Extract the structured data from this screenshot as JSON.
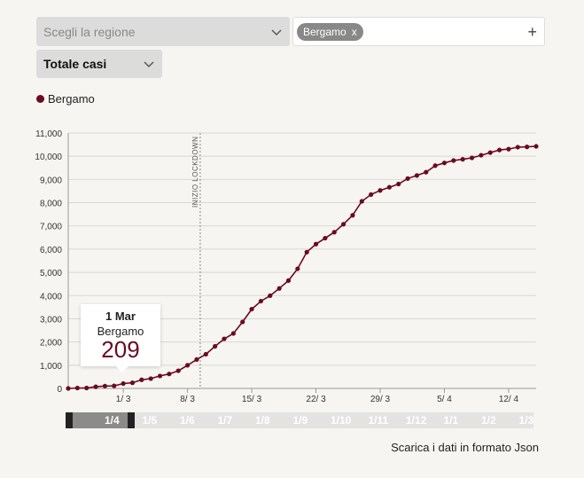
{
  "controls": {
    "region_placeholder": "Scegli la regione",
    "chips": [
      {
        "label": "Bergamo",
        "remove": "x"
      }
    ],
    "add_symbol": "+",
    "metric_label": "Totale casi"
  },
  "legend": [
    {
      "label": "Bergamo",
      "color": "#6b0a22"
    }
  ],
  "tooltip": {
    "date": "1 Mar",
    "name": "Bergamo",
    "value": "209"
  },
  "timeline": {
    "labels": [
      "1/4",
      "1/5",
      "1/6",
      "1/7",
      "1/8",
      "1/9",
      "1/10",
      "1/11",
      "1/12",
      "1/1",
      "1/2",
      "1/3"
    ]
  },
  "download_label": "Scarica i dati in formato Json",
  "chart_data": {
    "type": "line",
    "title": "",
    "xlabel": "",
    "ylabel": "",
    "ylim": [
      0,
      11000
    ],
    "yticks": [
      0,
      1000,
      2000,
      3000,
      4000,
      5000,
      6000,
      7000,
      8000,
      9000,
      10000,
      11000
    ],
    "ytick_labels": [
      "0",
      "1,000",
      "2,000",
      "3,000",
      "4,000",
      "5,000",
      "6,000",
      "7,000",
      "8,000",
      "9,000",
      "10,000",
      "11,000"
    ],
    "x_start": "2020-02-24",
    "x_end": "2020-04-15",
    "xticks": [
      "2020-03-01",
      "2020-03-08",
      "2020-03-15",
      "2020-03-22",
      "2020-03-29",
      "2020-04-05",
      "2020-04-12"
    ],
    "xtick_labels": [
      "1/ 3",
      "8/ 3",
      "15/ 3",
      "22/ 3",
      "29/ 3",
      "5/ 4",
      "12/ 4"
    ],
    "annotation": {
      "date": "2020-03-09",
      "label": "INIZIO LOCKDOWN"
    },
    "grid": true,
    "color": "#6b0a22",
    "series": [
      {
        "name": "Bergamo",
        "x": [
          "2020-02-24",
          "2020-02-25",
          "2020-02-26",
          "2020-02-27",
          "2020-02-28",
          "2020-02-29",
          "2020-03-01",
          "2020-03-02",
          "2020-03-03",
          "2020-03-04",
          "2020-03-05",
          "2020-03-06",
          "2020-03-07",
          "2020-03-08",
          "2020-03-09",
          "2020-03-10",
          "2020-03-11",
          "2020-03-12",
          "2020-03-13",
          "2020-03-14",
          "2020-03-15",
          "2020-03-16",
          "2020-03-17",
          "2020-03-18",
          "2020-03-19",
          "2020-03-20",
          "2020-03-21",
          "2020-03-22",
          "2020-03-23",
          "2020-03-24",
          "2020-03-25",
          "2020-03-26",
          "2020-03-27",
          "2020-03-28",
          "2020-03-29",
          "2020-03-30",
          "2020-03-31",
          "2020-04-01",
          "2020-04-02",
          "2020-04-03",
          "2020-04-04",
          "2020-04-05",
          "2020-04-06",
          "2020-04-07",
          "2020-04-08",
          "2020-04-09",
          "2020-04-10",
          "2020-04-11",
          "2020-04-12",
          "2020-04-13",
          "2020-04-14",
          "2020-04-15"
        ],
        "values": [
          0,
          18,
          20,
          72,
          103,
          110,
          209,
          243,
          372,
          423,
          537,
          623,
          761,
          997,
          1245,
          1472,
          1815,
          2136,
          2368,
          2864,
          3416,
          3760,
          3993,
          4305,
          4645,
          5154,
          5869,
          6216,
          6471,
          6728,
          7072,
          7458,
          8060,
          8349,
          8527,
          8664,
          8803,
          9039,
          9171,
          9315,
          9595,
          9712,
          9815,
          9868,
          9931,
          10043,
          10156,
          10269,
          10308,
          10391,
          10404,
          10426
        ]
      }
    ]
  }
}
